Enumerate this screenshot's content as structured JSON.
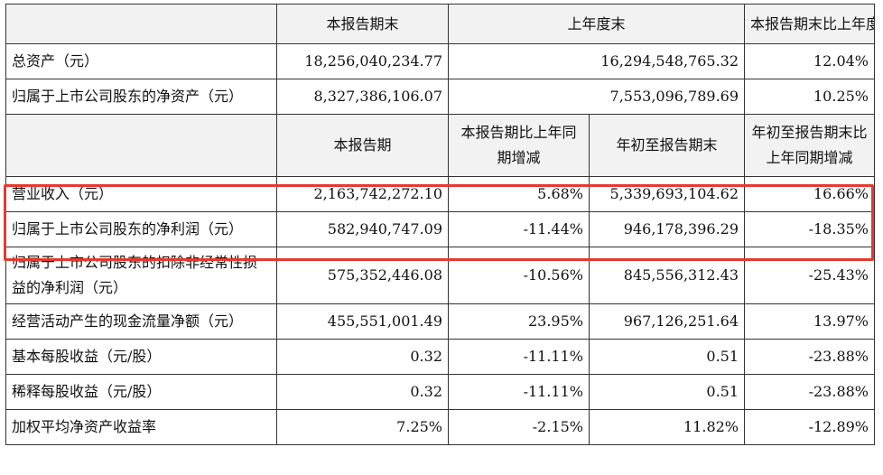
{
  "top_header": [
    "",
    "本报告期末",
    "上年度末",
    "本报告期末比上年度末增减"
  ],
  "top_rows": [
    {
      "label": "总资产（元）",
      "current": "18,256,040,234.77",
      "prior": "16,294,548,765.32",
      "change": "12.04%"
    },
    {
      "label": "归属于上市公司股东的净资产（元）",
      "current": "8,327,386,106.07",
      "prior": "7,553,096,789.69",
      "change": "10.25%"
    }
  ],
  "mid_header": [
    "",
    "本报告期",
    "本报告期比上年同期增减",
    "年初至报告期末",
    "年初至报告期末比上年同期增减"
  ],
  "rows": [
    {
      "label": "营业收入（元）",
      "period": "2,163,742,272.10",
      "period_change": "5.68%",
      "ytd": "5,339,693,104.62",
      "ytd_change": "16.66%"
    },
    {
      "label": "归属于上市公司股东的净利润（元）",
      "period": "582,940,747.09",
      "period_change": "-11.44%",
      "ytd": "946,178,396.29",
      "ytd_change": "-18.35%"
    },
    {
      "label": "归属于上市公司股东的扣除非经常性损益的净利润（元）",
      "period": "575,352,446.08",
      "period_change": "-10.56%",
      "ytd": "845,556,312.43",
      "ytd_change": "-25.43%"
    },
    {
      "label": "经营活动产生的现金流量净额（元）",
      "period": "455,551,001.49",
      "period_change": "23.95%",
      "ytd": "967,126,251.64",
      "ytd_change": "13.97%"
    },
    {
      "label": "基本每股收益（元/股）",
      "period": "0.32",
      "period_change": "-11.11%",
      "ytd": "0.51",
      "ytd_change": "-23.88%"
    },
    {
      "label": "稀释每股收益（元/股）",
      "period": "0.32",
      "period_change": "-11.11%",
      "ytd": "0.51",
      "ytd_change": "-23.88%"
    },
    {
      "label": "加权平均净资产收益率",
      "period": "7.25%",
      "period_change": "-2.15%",
      "ytd": "11.82%",
      "ytd_change": "-12.89%"
    }
  ],
  "highlight_color": "#e23b30"
}
